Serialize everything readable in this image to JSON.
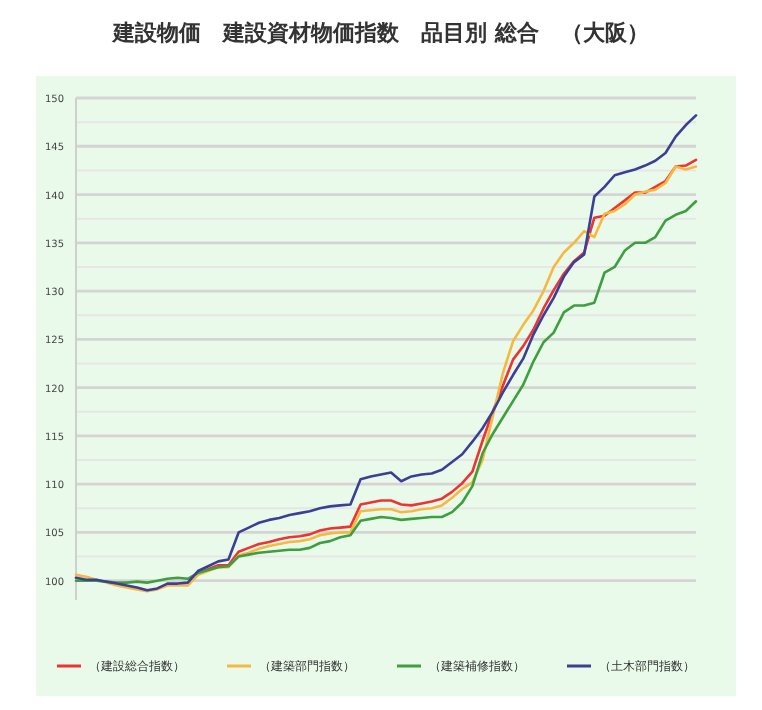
{
  "chart_data": {
    "type": "line",
    "title": "建設物価　建設資材物価指数　品目別 総合　（大阪）",
    "categories": [
      null,
      null,
      null,
      null,
      null,
      null,
      null,
      null,
      null,
      null,
      null,
      null,
      null,
      null,
      null,
      null,
      null,
      null,
      null,
      null,
      null,
      null,
      null,
      null,
      null,
      null,
      null,
      null,
      null,
      null,
      null,
      null,
      null,
      null,
      null,
      null,
      null,
      null,
      null,
      null,
      null,
      null,
      null,
      null,
      null,
      null,
      null,
      null,
      null,
      null,
      null,
      null,
      null,
      null,
      null,
      null,
      null,
      null,
      null,
      null,
      null,
      null
    ],
    "series": [
      {
        "name": "（建設総合指数）",
        "color": "#ee3333",
        "values": [
          null,
          null,
          null,
          null,
          null,
          null,
          null,
          null,
          null,
          null,
          null,
          null,
          100.8,
          101.2,
          101.6,
          101.6,
          103.0,
          103.4,
          103.8,
          104.0,
          104.3,
          104.5,
          104.6,
          104.8,
          105.2,
          105.4,
          105.5,
          105.6,
          107.9,
          108.1,
          108.3,
          108.3,
          107.9,
          107.8,
          108.0,
          108.2,
          108.5,
          109.2,
          110.1,
          111.3,
          114.5,
          117.5,
          120.2,
          122.9,
          124.3,
          126.0,
          128.2,
          130.1,
          131.8,
          133.1,
          134.0,
          137.6,
          137.8,
          138.6,
          139.4,
          140.2,
          140.2,
          140.8,
          141.4,
          142.9,
          143.0,
          143.6
        ]
      },
      {
        "name": "（建築部門指数）",
        "color": "#f5b942",
        "values": [
          100.6,
          100.4,
          100.1,
          99.8,
          99.5,
          99.3,
          99.1,
          98.9,
          99.1,
          99.5,
          99.5,
          99.5,
          100.6,
          101.0,
          101.4,
          101.4,
          102.6,
          102.9,
          103.3,
          103.6,
          103.8,
          104.0,
          104.1,
          104.3,
          104.7,
          104.9,
          105.0,
          105.0,
          107.2,
          107.3,
          107.4,
          107.4,
          107.1,
          107.2,
          107.4,
          107.5,
          107.8,
          108.6,
          109.5,
          110.2,
          112.5,
          117.0,
          121.5,
          124.8,
          126.5,
          128.0,
          130.0,
          132.5,
          134.0,
          135.0,
          136.2,
          135.6,
          138.0,
          138.3,
          139.0,
          140.0,
          140.3,
          140.5,
          141.2,
          142.9,
          142.6,
          142.9
        ]
      },
      {
        "name": "（建築補修指数）",
        "color": "#3f9e3f",
        "values": [
          100.0,
          100.0,
          100.0,
          99.9,
          99.8,
          99.8,
          99.9,
          99.8,
          100.0,
          100.2,
          100.3,
          100.2,
          100.8,
          101.1,
          101.4,
          101.5,
          102.5,
          102.7,
          102.9,
          103.0,
          103.1,
          103.2,
          103.2,
          103.4,
          103.9,
          104.1,
          104.5,
          104.7,
          106.2,
          106.4,
          106.6,
          106.5,
          106.3,
          106.4,
          106.5,
          106.6,
          106.6,
          107.1,
          108.1,
          109.8,
          113.2,
          115.2,
          116.9,
          118.6,
          120.3,
          122.7,
          124.7,
          125.7,
          127.8,
          128.5,
          128.5,
          128.8,
          131.9,
          132.5,
          134.2,
          135.0,
          135.0,
          135.6,
          137.3,
          137.9,
          138.3,
          139.3
        ]
      },
      {
        "name": "（土木部門指数）",
        "color": "#3b3f95",
        "values": [
          100.3,
          100.1,
          100.1,
          99.9,
          99.7,
          99.5,
          99.3,
          99.0,
          99.2,
          99.7,
          99.7,
          99.8,
          101.0,
          101.5,
          102.0,
          102.2,
          105.0,
          105.5,
          106.0,
          106.3,
          106.5,
          106.8,
          107.0,
          107.2,
          107.5,
          107.7,
          107.8,
          107.9,
          110.5,
          110.8,
          111.0,
          111.2,
          110.3,
          110.8,
          111.0,
          111.1,
          111.5,
          112.3,
          113.1,
          114.4,
          115.8,
          117.5,
          119.5,
          121.3,
          123.0,
          125.5,
          127.5,
          129.3,
          131.5,
          133.0,
          133.8,
          139.8,
          140.8,
          142.0,
          142.3,
          142.6,
          143.0,
          143.5,
          144.3,
          146.0,
          147.2,
          148.2
        ]
      }
    ],
    "ylim": [
      98,
      150
    ],
    "yticks": [
      100,
      {
        "value": 102.5,
        "label": null
      },
      105,
      {
        "value": 107.5,
        "label": null
      },
      110,
      {
        "value": 112.5,
        "label": null
      },
      115,
      {
        "value": 117.5,
        "label": null
      },
      120,
      {
        "value": 122.5,
        "label": null
      },
      125,
      {
        "value": 127.5,
        "label": null
      },
      130,
      {
        "value": 132.5,
        "label": null
      },
      135,
      {
        "value": 137.5,
        "label": null
      },
      140,
      {
        "value": 142.5,
        "label": null
      },
      145,
      {
        "value": 147.5,
        "label": null
      },
      150
    ],
    "grid": "y",
    "legend": "bottom",
    "marker": "none",
    "line_style": "solid"
  }
}
